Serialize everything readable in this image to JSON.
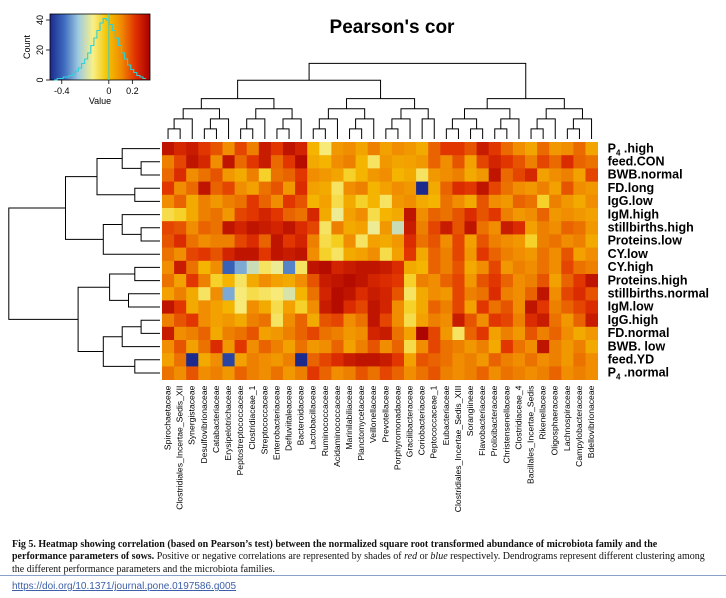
{
  "chart_data": {
    "type": "heatmap",
    "title": "Pearson's cor",
    "columns": [
      "Spirochaetaceae",
      "Clostridiales_Incertae_Sedis_XII",
      "Synergistaceae",
      "Desulfovibrionaceae",
      "Catabacteriaceae",
      "Erysipelotrichaceae",
      "Peptostreptococcaceae",
      "Clostridiaceae_1",
      "Streptococcaceae",
      "Enterobacteriaceae",
      "Defluviitaleaceae",
      "Bacteroidaceae",
      "Lactobacillaceae",
      "Ruminococcaceae",
      "Acidaminococcaceae",
      "Marinilabiliaceae",
      "Planctomycetaceae",
      "Veillonellaceae",
      "Prevotellaceae",
      "Porphyromonadaceae",
      "Gracilibacteraceae",
      "Coriobacteriaceae",
      "Peptococcaceae_1",
      "Eubacteriaceae",
      "Clostridiales_Incertae_Sedis_XIII",
      "Sorangiineae",
      "Flavobacteriaceae",
      "Prolixibacteraceae",
      "Christensenellaceae",
      "Clostridiaceae_4",
      "Bacillales_Incertae_Sedis",
      "Rikenellaceae",
      "Oligosphaeraceae",
      "Lachnospiraceae",
      "Campylobacteraceae",
      "Bdellovibrionaceae"
    ],
    "rows": [
      {
        "sub": "P",
        "idx": "4",
        "rest": " .high"
      },
      {
        "sub": "feed",
        "idx": "",
        "rest": ".CON"
      },
      {
        "sub": "BWB",
        "idx": "",
        "rest": ".normal"
      },
      {
        "sub": "FD",
        "idx": "",
        "rest": ".long"
      },
      {
        "sub": "IgG",
        "idx": "",
        "rest": ".low"
      },
      {
        "sub": "IgM",
        "idx": "",
        "rest": ".high"
      },
      {
        "sub": "stillbirths",
        "idx": "",
        "rest": ".high"
      },
      {
        "sub": "Proteins",
        "idx": "",
        "rest": ".low"
      },
      {
        "sub": "CY",
        "idx": "",
        "rest": ".low"
      },
      {
        "sub": "CY",
        "idx": "",
        "rest": ".high"
      },
      {
        "sub": "Proteins",
        "idx": "",
        "rest": ".high"
      },
      {
        "sub": "stillbirths",
        "idx": "",
        "rest": ".normal"
      },
      {
        "sub": "IgM",
        "idx": "",
        "rest": ".low"
      },
      {
        "sub": "IgG",
        "idx": "",
        "rest": ".high"
      },
      {
        "sub": "FD",
        "idx": "",
        "rest": ".normal"
      },
      {
        "sub": "BWB",
        "idx": "",
        "rest": ". low"
      },
      {
        "sub": "feed",
        "idx": "",
        "rest": ".YD"
      },
      {
        "sub": "P",
        "idx": "4",
        "rest": " .normal"
      }
    ],
    "color_scale": {
      "min": -0.5,
      "max": 0.35,
      "colors": [
        "#1b2a8c",
        "#3f6cc0",
        "#9fcbe0",
        "#f7f08a",
        "#f5c400",
        "#f08a00",
        "#e03000",
        "#a80000"
      ]
    },
    "key": {
      "xlabel": "Value",
      "ylabel": "Count",
      "x_ticks": [
        "-0.4",
        "0",
        "0.2"
      ],
      "y_ticks": [
        "0",
        "20",
        "40"
      ],
      "x_tick_values": [
        -0.4,
        0,
        0.2
      ],
      "y_tick_values": [
        0,
        20,
        40
      ],
      "ylim": [
        0,
        40
      ]
    },
    "histogram": [
      0,
      1,
      1,
      2,
      2,
      3,
      4,
      6,
      8,
      11,
      14,
      18,
      23,
      28,
      33,
      38,
      41,
      40,
      37,
      33,
      28,
      23,
      18,
      14,
      10,
      7,
      5,
      3,
      2,
      1
    ],
    "values": [
      [
        0.3,
        0.25,
        0.28,
        0.22,
        0.18,
        0.1,
        0.2,
        0.12,
        0.28,
        0.22,
        0.3,
        0.26,
        0.02,
        -0.12,
        0.08,
        0.1,
        0.05,
        0.12,
        0.06,
        0.1,
        0.08,
        0.04,
        0.16,
        0.22,
        0.22,
        0.18,
        0.28,
        0.22,
        0.15,
        0.1,
        0.05,
        0.15,
        0.08,
        0.1,
        0.15,
        0.05
      ],
      [
        0.12,
        0.2,
        0.3,
        0.25,
        0.1,
        0.3,
        0.15,
        0.22,
        0.28,
        0.15,
        0.22,
        0.32,
        0.04,
        0.02,
        0.1,
        0.12,
        0.02,
        -0.1,
        0.08,
        0.05,
        0.06,
        0.08,
        0.16,
        0.1,
        0.18,
        0.06,
        0.2,
        0.26,
        0.22,
        0.18,
        0.12,
        0.2,
        0.15,
        0.24,
        0.16,
        0.14
      ],
      [
        0.15,
        0.24,
        0.1,
        0.14,
        0.18,
        0.08,
        0.04,
        0.12,
        -0.05,
        0.14,
        0.16,
        0.22,
        0.1,
        0.08,
        0.05,
        -0.05,
        0.02,
        0.08,
        0.1,
        0.02,
        0.04,
        -0.1,
        0.08,
        0.1,
        0.12,
        0.04,
        0.08,
        0.3,
        0.15,
        0.2,
        0.25,
        0.06,
        0.1,
        0.12,
        0.06,
        0.2
      ],
      [
        0.22,
        0.1,
        0.15,
        0.3,
        0.16,
        0.2,
        0.1,
        0.06,
        0.14,
        0.18,
        0.08,
        0.24,
        0.06,
        0.04,
        -0.1,
        0.1,
        0.12,
        0.02,
        0.06,
        0.1,
        0.08,
        -0.5,
        0.04,
        0.16,
        0.24,
        0.22,
        0.3,
        0.2,
        0.14,
        0.1,
        0.08,
        0.12,
        0.06,
        0.18,
        0.1,
        0.08
      ],
      [
        0.1,
        0.16,
        0.04,
        0.12,
        0.08,
        0.12,
        0.14,
        0.22,
        0.16,
        0.1,
        0.22,
        0.18,
        0.02,
        0.06,
        -0.08,
        0.04,
        -0.05,
        0.02,
        -0.1,
        0.08,
        0.1,
        0.04,
        0.02,
        0.14,
        0.1,
        0.04,
        0.18,
        0.1,
        0.08,
        0.16,
        0.14,
        -0.05,
        0.12,
        0.08,
        0.04,
        0.1
      ],
      [
        -0.08,
        -0.05,
        0.04,
        0.12,
        0.14,
        0.08,
        0.2,
        0.22,
        0.26,
        0.22,
        0.16,
        0.14,
        0.25,
        0.04,
        -0.15,
        0.06,
        0.1,
        -0.08,
        0.02,
        0.04,
        0.3,
        0.1,
        0.16,
        0.14,
        0.18,
        0.24,
        0.18,
        0.22,
        0.12,
        0.08,
        0.1,
        0.16,
        0.08,
        0.1,
        0.08,
        0.06
      ],
      [
        0.2,
        0.18,
        0.1,
        0.16,
        0.14,
        0.3,
        0.26,
        0.3,
        0.28,
        0.26,
        0.3,
        0.24,
        0.2,
        -0.1,
        0.12,
        0.04,
        0.06,
        -0.15,
        0.08,
        -0.2,
        0.28,
        0.12,
        0.2,
        0.28,
        0.18,
        0.3,
        0.14,
        0.1,
        0.28,
        0.24,
        0.06,
        0.12,
        0.1,
        0.16,
        0.14,
        0.08
      ],
      [
        0.18,
        0.24,
        0.14,
        0.1,
        0.12,
        0.12,
        0.2,
        0.24,
        0.16,
        0.3,
        0.22,
        0.26,
        0.12,
        -0.08,
        -0.04,
        0.1,
        -0.1,
        0.06,
        0.04,
        0.08,
        0.24,
        0.14,
        0.18,
        0.1,
        0.2,
        0.06,
        0.18,
        0.12,
        0.1,
        0.08,
        -0.05,
        0.12,
        0.14,
        0.1,
        0.12,
        0.04
      ],
      [
        0.14,
        0.1,
        0.2,
        0.22,
        0.18,
        0.26,
        0.3,
        0.3,
        0.22,
        0.3,
        0.28,
        0.3,
        0.1,
        -0.05,
        -0.1,
        0.04,
        0.06,
        0.1,
        -0.08,
        0.06,
        0.22,
        0.04,
        0.16,
        0.12,
        0.2,
        0.08,
        0.22,
        0.16,
        0.12,
        0.1,
        0.08,
        0.14,
        0.1,
        0.18,
        0.06,
        0.1
      ],
      [
        0.1,
        0.28,
        0.14,
        0.02,
        0.1,
        -0.4,
        -0.3,
        -0.2,
        -0.1,
        -0.15,
        -0.35,
        -0.1,
        0.3,
        0.32,
        0.26,
        0.28,
        0.3,
        0.3,
        0.28,
        0.24,
        0.04,
        0.02,
        0.16,
        0.12,
        0.18,
        0.04,
        0.1,
        0.2,
        0.08,
        0.12,
        0.1,
        0.14,
        0.1,
        0.2,
        0.14,
        0.12
      ],
      [
        0.14,
        0.06,
        0.22,
        0.12,
        -0.05,
        0.02,
        -0.1,
        0.04,
        0.1,
        0.06,
        0.04,
        0.1,
        0.18,
        0.28,
        0.3,
        0.32,
        0.3,
        0.26,
        0.24,
        0.22,
        -0.05,
        0.12,
        0.1,
        0.16,
        0.2,
        0.08,
        0.18,
        0.22,
        0.16,
        0.1,
        0.12,
        0.18,
        0.06,
        0.16,
        0.22,
        0.3
      ],
      [
        0.06,
        0.12,
        0.04,
        -0.1,
        0.1,
        -0.3,
        -0.12,
        -0.08,
        -0.1,
        -0.12,
        -0.18,
        0.02,
        0.14,
        0.26,
        0.32,
        0.3,
        0.24,
        0.28,
        0.26,
        0.18,
        -0.1,
        0.04,
        0.1,
        0.08,
        0.2,
        0.12,
        0.14,
        0.24,
        0.12,
        0.1,
        0.16,
        0.3,
        0.1,
        0.2,
        0.24,
        0.18
      ],
      [
        0.3,
        0.22,
        0.04,
        0.1,
        0.06,
        0.02,
        -0.12,
        0.1,
        0.04,
        -0.08,
        0.06,
        -0.05,
        0.1,
        0.28,
        0.32,
        0.24,
        0.2,
        0.3,
        0.26,
        0.1,
        -0.05,
        0.04,
        0.16,
        0.12,
        0.2,
        0.06,
        0.22,
        0.14,
        0.18,
        0.1,
        0.3,
        0.22,
        0.12,
        0.16,
        0.2,
        0.24
      ],
      [
        0.12,
        0.18,
        0.22,
        0.1,
        0.06,
        0.08,
        0.04,
        0.12,
        0.14,
        -0.1,
        0.1,
        0.16,
        0.04,
        0.18,
        0.2,
        0.1,
        0.14,
        0.3,
        0.2,
        0.1,
        -0.08,
        0.06,
        0.12,
        0.1,
        0.28,
        0.18,
        0.1,
        0.22,
        0.2,
        0.12,
        0.24,
        0.28,
        0.14,
        0.08,
        0.16,
        0.28
      ],
      [
        0.28,
        0.1,
        0.12,
        0.16,
        0.04,
        0.12,
        0.14,
        0.18,
        0.06,
        0.08,
        0.12,
        0.16,
        0.2,
        0.14,
        0.12,
        0.08,
        0.1,
        0.26,
        0.28,
        0.14,
        0.06,
        0.34,
        0.2,
        0.08,
        -0.1,
        0.16,
        0.22,
        0.06,
        0.12,
        0.08,
        0.18,
        0.12,
        0.16,
        0.1,
        0.04,
        0.08
      ],
      [
        0.1,
        0.18,
        0.06,
        0.14,
        0.24,
        0.08,
        0.22,
        0.1,
        0.16,
        0.12,
        0.06,
        0.14,
        0.08,
        0.1,
        0.16,
        0.06,
        0.12,
        0.18,
        0.1,
        0.16,
        -0.08,
        0.1,
        0.2,
        0.14,
        0.12,
        0.08,
        0.12,
        0.04,
        0.22,
        0.14,
        0.1,
        0.3,
        0.12,
        0.08,
        0.12,
        0.04
      ],
      [
        0.06,
        0.14,
        -0.5,
        0.04,
        0.1,
        -0.45,
        0.06,
        0.12,
        0.1,
        0.08,
        0.12,
        -0.5,
        0.16,
        0.2,
        0.24,
        0.28,
        0.3,
        0.3,
        0.28,
        0.22,
        0.06,
        0.18,
        0.16,
        0.14,
        0.1,
        0.12,
        0.08,
        0.16,
        0.12,
        0.1,
        0.14,
        0.1,
        0.12,
        0.08,
        0.14,
        0.1
      ],
      [
        0.14,
        0.1,
        0.18,
        0.1,
        0.12,
        0.08,
        0.16,
        0.12,
        0.1,
        0.14,
        0.08,
        0.12,
        0.22,
        0.16,
        0.1,
        0.12,
        0.18,
        0.14,
        0.2,
        0.16,
        0.1,
        0.14,
        0.18,
        0.12,
        0.1,
        0.12,
        0.16,
        0.1,
        0.14,
        0.12,
        0.1,
        0.12,
        0.16,
        0.1,
        0.12,
        0.1
      ]
    ]
  },
  "caption": {
    "label": "Fig 5.",
    "bold": "Heatmap showing correlation (based on Pearson’s test) between the normalized square root transformed abundance of microbiota family and the performance parameters of sows.",
    "text1": "Positive or negative correlations are represented by shades of",
    "red": "red",
    "or": "or",
    "blue": "blue",
    "text2": "respectively. Dendrograms represent different clustering among the different performance parameters and the microbiota families."
  },
  "doi": "https://doi.org/10.1371/journal.pone.0197586.g005"
}
